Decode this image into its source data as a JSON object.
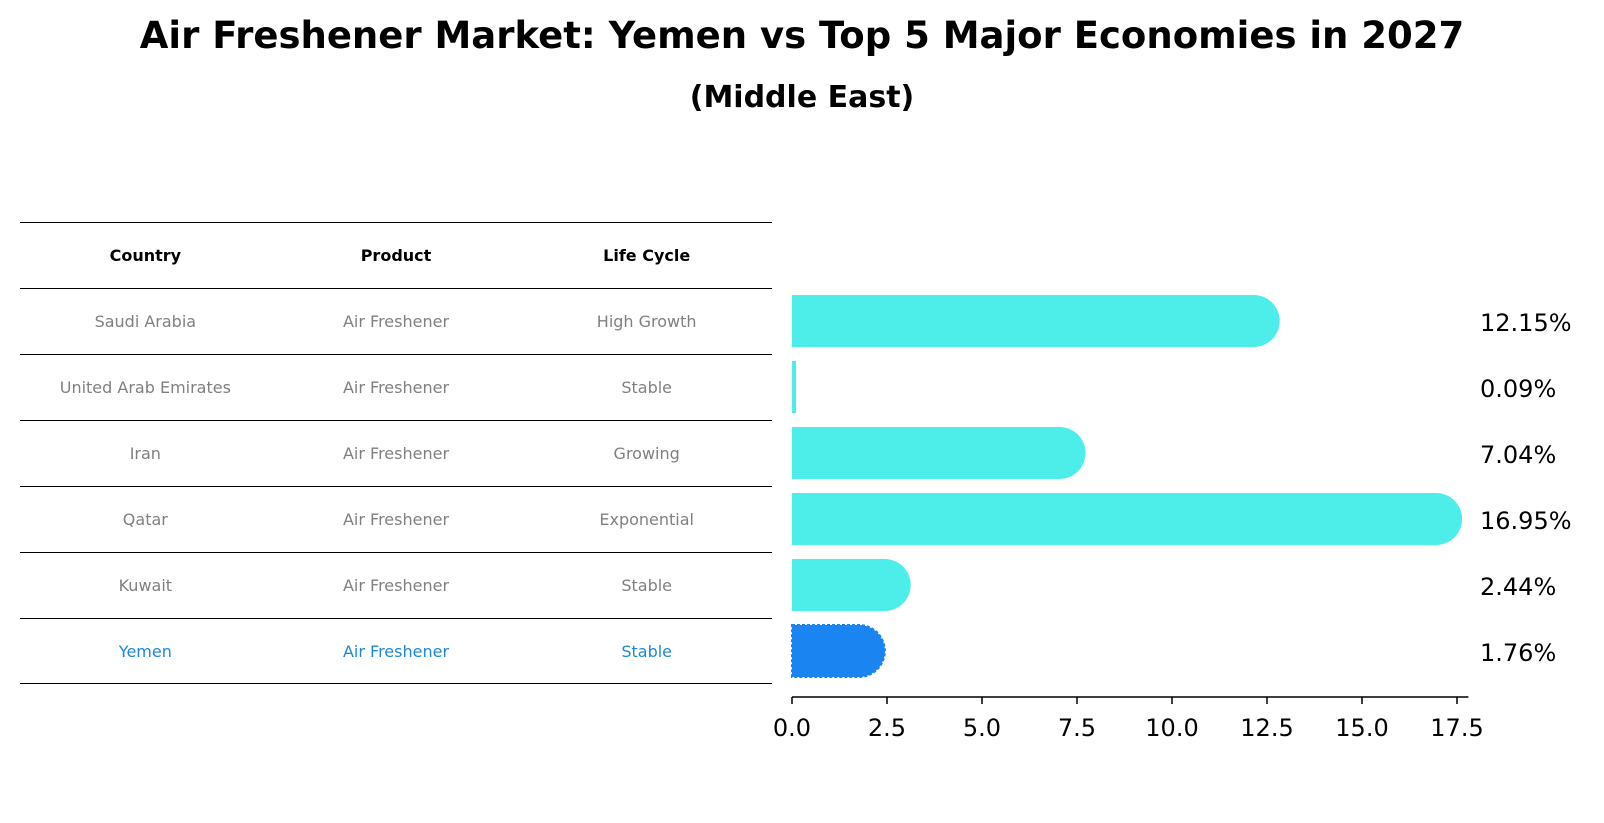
{
  "title": "Air Freshener Market: Yemen vs Top 5 Major Economies in 2027",
  "subtitle": "(Middle East)",
  "table": {
    "headers": [
      "Country",
      "Product",
      "Life Cycle"
    ],
    "rows": [
      [
        "Saudi Arabia",
        "Air Freshener",
        "High Growth"
      ],
      [
        "United Arab Emirates",
        "Air Freshener",
        "Stable"
      ],
      [
        "Iran",
        "Air Freshener",
        "Growing"
      ],
      [
        "Qatar",
        "Air Freshener",
        "Exponential"
      ],
      [
        "Kuwait",
        "Air Freshener",
        "Stable"
      ],
      [
        "Yemen",
        "Air Freshener",
        "Stable"
      ]
    ],
    "highlight_row": 5
  },
  "chart_data": {
    "type": "bar",
    "orientation": "horizontal",
    "categories": [
      "Saudi Arabia",
      "United Arab Emirates",
      "Iran",
      "Qatar",
      "Kuwait",
      "Yemen"
    ],
    "values": [
      12.15,
      0.09,
      7.04,
      16.95,
      2.44,
      1.76
    ],
    "value_labels": [
      "12.15%",
      "0.09%",
      "7.04%",
      "16.95%",
      "2.44%",
      "1.76%"
    ],
    "xlim": [
      0,
      17.8
    ],
    "xticks": [
      0.0,
      2.5,
      5.0,
      7.5,
      10.0,
      12.5,
      15.0,
      17.5
    ],
    "xtick_labels": [
      "0.0",
      "2.5",
      "5.0",
      "7.5",
      "10.0",
      "12.5",
      "15.0",
      "17.5"
    ],
    "grid": false,
    "colors": {
      "default": "#4deeea",
      "highlight": "#1a85f0"
    },
    "highlight_index": 5
  }
}
